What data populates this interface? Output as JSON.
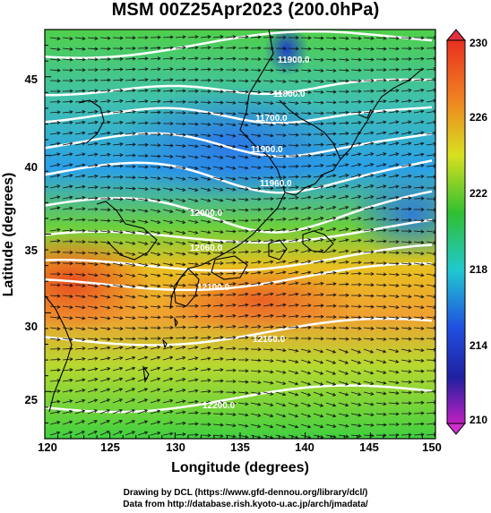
{
  "title": "MSM 00Z25Apr2023 (200.0hPa)",
  "xlabel": "Longitude (degrees)",
  "ylabel": "Latitude  (degrees)",
  "x_ticks": [
    "120",
    "125",
    "130",
    "135",
    "140",
    "145",
    "150"
  ],
  "y_ticks": [
    "25",
    "30",
    "35",
    "40",
    "45"
  ],
  "colorbar_ticks": [
    "230",
    "226",
    "222",
    "218",
    "214",
    "210"
  ],
  "contour_labels": [
    "11900.0",
    "11800.0",
    "11700.0",
    "11900.0",
    "11960.0",
    "12000.0",
    "12060.0",
    "12100.0",
    "12160.0",
    "12200.0"
  ],
  "credit_line1": "Drawing by DCL (https://www.gfd-dennou.org/library/dcl/)",
  "credit_line2": "Data from http://database.rish.kyoto-u.ac.jp/arch/jmadata/",
  "colors": {
    "warm": "#e83a1a",
    "mid": "#22c02a",
    "cool": "#1f6fe0",
    "min": "#c020c0",
    "max": "#e03030"
  }
}
